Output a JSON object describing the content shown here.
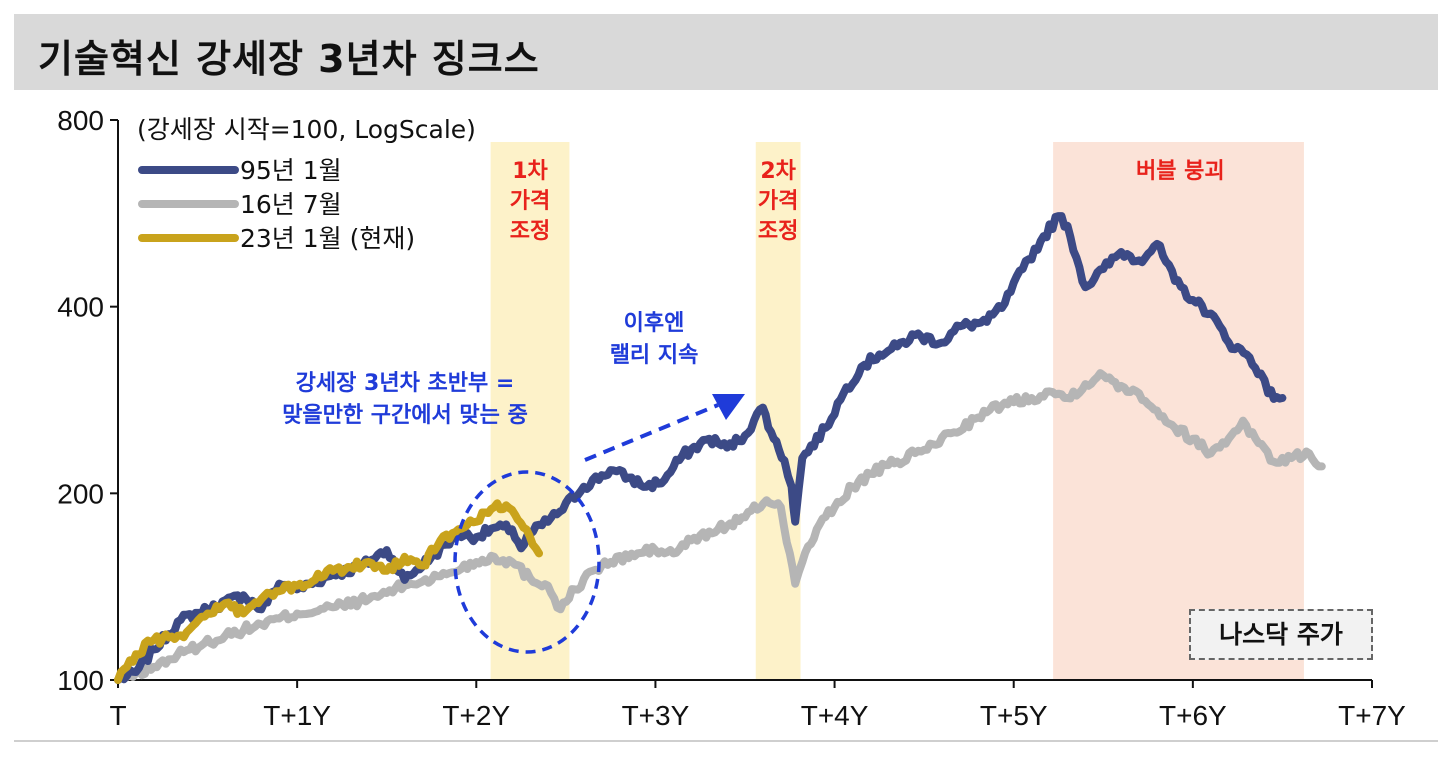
{
  "title": "기술혁신 강세장 3년차 징크스",
  "note": "(강세장 시작=100, LogScale)",
  "source_box": "나스닥 주가",
  "annotations": {
    "adj1": [
      "1차",
      "가격",
      "조정"
    ],
    "adj2": [
      "2차",
      "가격",
      "조정"
    ],
    "bubble": "버블 붕괴",
    "rally": [
      "이후엔",
      "랠리 지속"
    ],
    "early": [
      "강세장 3년차 초반부 =",
      "맞을만한 구간에서 맞는 중"
    ]
  },
  "colors": {
    "s95": "#3c4a86",
    "s16": "#b5b5b5",
    "s23": "#c9a31c",
    "highlight_yellow": "#fdf2c9",
    "highlight_pink": "#fbe3d8",
    "annotation_red": "#e8221b",
    "annotation_blue": "#1f3bd9"
  },
  "chart_data": {
    "type": "line",
    "x_ticks": [
      "T",
      "T+1Y",
      "T+2Y",
      "T+3Y",
      "T+4Y",
      "T+5Y",
      "T+6Y",
      "T+7Y"
    ],
    "y_ticks": [
      "100",
      "200",
      "400",
      "800"
    ],
    "y_scale": "log2",
    "ylim": [
      100,
      800
    ],
    "xlim": [
      0,
      7
    ],
    "shaded_periods": [
      {
        "label": "1차 가격 조정",
        "x": [
          2.08,
          2.52
        ],
        "color": "#fdf2c9"
      },
      {
        "label": "2차 가격 조정",
        "x": [
          3.56,
          3.81
        ],
        "color": "#fdf2c9"
      },
      {
        "label": "버블 붕괴",
        "x": [
          5.22,
          6.62
        ],
        "color": "#fbe3d8"
      }
    ],
    "series": [
      {
        "name": "95년 1월",
        "color": "#3c4a86",
        "points": [
          [
            0,
            100
          ],
          [
            0.1,
            103
          ],
          [
            0.2,
            112
          ],
          [
            0.35,
            125
          ],
          [
            0.5,
            130
          ],
          [
            0.7,
            137
          ],
          [
            0.8,
            130
          ],
          [
            0.9,
            143
          ],
          [
            1.0,
            140
          ],
          [
            1.2,
            148
          ],
          [
            1.35,
            152
          ],
          [
            1.5,
            162
          ],
          [
            1.6,
            145
          ],
          [
            1.75,
            158
          ],
          [
            1.9,
            172
          ],
          [
            2.0,
            170
          ],
          [
            2.1,
            176
          ],
          [
            2.2,
            175
          ],
          [
            2.25,
            163
          ],
          [
            2.3,
            172
          ],
          [
            2.45,
            185
          ],
          [
            2.6,
            205
          ],
          [
            2.75,
            218
          ],
          [
            2.85,
            212
          ],
          [
            2.95,
            205
          ],
          [
            3.05,
            210
          ],
          [
            3.15,
            230
          ],
          [
            3.3,
            245
          ],
          [
            3.4,
            237
          ],
          [
            3.5,
            248
          ],
          [
            3.55,
            262
          ],
          [
            3.6,
            275
          ],
          [
            3.66,
            245
          ],
          [
            3.72,
            226
          ],
          [
            3.76,
            205
          ],
          [
            3.78,
            180
          ],
          [
            3.82,
            228
          ],
          [
            3.95,
            255
          ],
          [
            4.05,
            290
          ],
          [
            4.15,
            320
          ],
          [
            4.25,
            335
          ],
          [
            4.35,
            345
          ],
          [
            4.45,
            360
          ],
          [
            4.6,
            350
          ],
          [
            4.7,
            372
          ],
          [
            4.85,
            378
          ],
          [
            4.95,
            405
          ],
          [
            5.05,
            460
          ],
          [
            5.15,
            510
          ],
          [
            5.25,
            560
          ],
          [
            5.3,
            540
          ],
          [
            5.35,
            480
          ],
          [
            5.4,
            430
          ],
          [
            5.5,
            460
          ],
          [
            5.6,
            490
          ],
          [
            5.7,
            475
          ],
          [
            5.8,
            505
          ],
          [
            5.9,
            440
          ],
          [
            6.0,
            410
          ],
          [
            6.1,
            390
          ],
          [
            6.2,
            350
          ],
          [
            6.3,
            335
          ],
          [
            6.38,
            312
          ],
          [
            6.42,
            290
          ],
          [
            6.5,
            285
          ]
        ]
      },
      {
        "name": "16년 7월",
        "color": "#b5b5b5",
        "points": [
          [
            0,
            100
          ],
          [
            0.2,
            105
          ],
          [
            0.4,
            112
          ],
          [
            0.6,
            118
          ],
          [
            0.8,
            123
          ],
          [
            1.0,
            128
          ],
          [
            1.2,
            131
          ],
          [
            1.4,
            135
          ],
          [
            1.6,
            142
          ],
          [
            1.8,
            147
          ],
          [
            2.0,
            155
          ],
          [
            2.1,
            158
          ],
          [
            2.2,
            155
          ],
          [
            2.3,
            146
          ],
          [
            2.4,
            142
          ],
          [
            2.47,
            130
          ],
          [
            2.55,
            140
          ],
          [
            2.65,
            150
          ],
          [
            2.75,
            155
          ],
          [
            2.9,
            160
          ],
          [
            3.0,
            162
          ],
          [
            3.1,
            160
          ],
          [
            3.2,
            168
          ],
          [
            3.35,
            175
          ],
          [
            3.5,
            183
          ],
          [
            3.62,
            195
          ],
          [
            3.7,
            190
          ],
          [
            3.75,
            160
          ],
          [
            3.78,
            143
          ],
          [
            3.82,
            155
          ],
          [
            3.9,
            175
          ],
          [
            4.0,
            190
          ],
          [
            4.1,
            205
          ],
          [
            4.2,
            215
          ],
          [
            4.35,
            225
          ],
          [
            4.5,
            235
          ],
          [
            4.65,
            250
          ],
          [
            4.8,
            265
          ],
          [
            4.95,
            280
          ],
          [
            5.1,
            285
          ],
          [
            5.2,
            292
          ],
          [
            5.3,
            285
          ],
          [
            5.4,
            300
          ],
          [
            5.5,
            310
          ],
          [
            5.6,
            298
          ],
          [
            5.7,
            290
          ],
          [
            5.8,
            272
          ],
          [
            5.9,
            255
          ],
          [
            6.0,
            245
          ],
          [
            6.1,
            232
          ],
          [
            6.2,
            245
          ],
          [
            6.28,
            262
          ],
          [
            6.35,
            245
          ],
          [
            6.45,
            225
          ],
          [
            6.55,
            228
          ],
          [
            6.65,
            232
          ],
          [
            6.72,
            221
          ]
        ]
      },
      {
        "name": "23년 1월 (현재)",
        "color": "#c9a31c",
        "points": [
          [
            0,
            100
          ],
          [
            0.1,
            110
          ],
          [
            0.2,
            116
          ],
          [
            0.35,
            118
          ],
          [
            0.5,
            128
          ],
          [
            0.6,
            133
          ],
          [
            0.7,
            128
          ],
          [
            0.85,
            138
          ],
          [
            1.0,
            142
          ],
          [
            1.1,
            145
          ],
          [
            1.2,
            150
          ],
          [
            1.3,
            152
          ],
          [
            1.4,
            155
          ],
          [
            1.5,
            150
          ],
          [
            1.6,
            158
          ],
          [
            1.7,
            153
          ],
          [
            1.8,
            168
          ],
          [
            1.9,
            175
          ],
          [
            2.0,
            180
          ],
          [
            2.1,
            190
          ],
          [
            2.2,
            188
          ],
          [
            2.28,
            175
          ],
          [
            2.35,
            160
          ]
        ]
      }
    ]
  }
}
